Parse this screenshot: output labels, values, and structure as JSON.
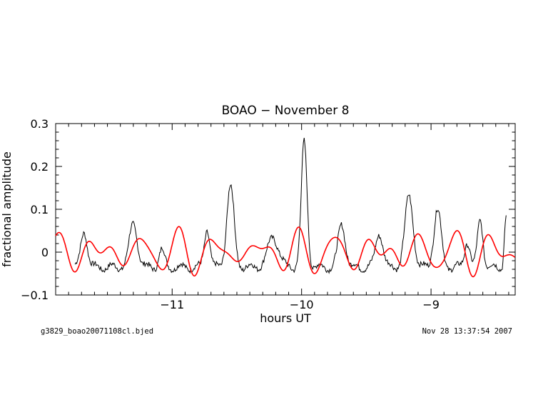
{
  "chart_data": {
    "type": "line",
    "title": "BOAO − November 8",
    "xlabel": "hours UT",
    "ylabel": "fractional amplitude",
    "xlim": [
      -11.9,
      -8.35
    ],
    "ylim": [
      -0.1,
      0.3
    ],
    "xticks": [
      -11,
      -10,
      -9
    ],
    "yticks": [
      -0.1,
      0,
      0.1,
      0.2,
      0.3
    ],
    "xtick_labels": [
      "−11",
      "−10",
      "−9"
    ],
    "ytick_labels": [
      "−0.1",
      "0",
      "0.1",
      "0.2",
      "0.3"
    ],
    "grid": false,
    "footer_left": "g3829_boao20071108cl.bjed",
    "footer_right": "Nov 28 13:37:54 2007",
    "series": [
      {
        "color": "#000000",
        "peaks": [
          {
            "t": -11.68,
            "a": 0.085,
            "w": 0.035
          },
          {
            "t": -11.3,
            "a": 0.1,
            "w": 0.045
          },
          {
            "t": -11.08,
            "a": 0.04,
            "w": 0.03
          },
          {
            "t": -10.73,
            "a": 0.09,
            "w": 0.03
          },
          {
            "t": -10.55,
            "a": 0.19,
            "w": 0.04
          },
          {
            "t": -10.22,
            "a": 0.07,
            "w": 0.06
          },
          {
            "t": -9.98,
            "a": 0.29,
            "w": 0.032
          },
          {
            "t": -9.69,
            "a": 0.1,
            "w": 0.04
          },
          {
            "t": -9.4,
            "a": 0.08,
            "w": 0.04
          },
          {
            "t": -9.17,
            "a": 0.165,
            "w": 0.045
          },
          {
            "t": -8.95,
            "a": 0.135,
            "w": 0.04
          },
          {
            "t": -8.72,
            "a": 0.06,
            "w": 0.03
          },
          {
            "t": -8.62,
            "a": 0.11,
            "w": 0.03
          },
          {
            "t": -8.42,
            "a": 0.12,
            "w": 0.018
          }
        ],
        "baseline": -0.035,
        "x_start": -11.75,
        "x_end": -8.415
      },
      {
        "color": "#ff0000",
        "fit": true,
        "x_start": -11.9,
        "x_end": -8.35,
        "components": [
          {
            "amp": 0.03,
            "period": 0.306,
            "phase": 0.3
          },
          {
            "amp": 0.02,
            "period": 0.238,
            "phase": 1.8
          },
          {
            "amp": 0.012,
            "period": 0.181,
            "phase": 4.1
          }
        ]
      }
    ]
  }
}
